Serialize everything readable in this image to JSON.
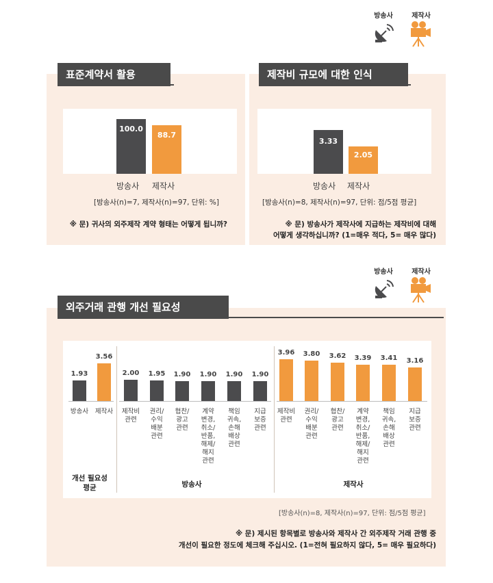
{
  "legend": {
    "broadcaster": "방송사",
    "producer": "제작사",
    "colors": {
      "broadcaster": "#4b4b4d",
      "producer": "#f19a3e"
    },
    "icons": {
      "broadcaster": "satellite-dish-icon",
      "producer": "movie-camera-icon"
    }
  },
  "section1": {
    "title": "표준계약서 활용",
    "categories": [
      "방송사",
      "제작사"
    ],
    "note": "[방송사(n)=7, 제작사(n)=97, 단위: %]",
    "question": "※ 문) 귀사의 외주제작 계약 형태는 어떻게 됩니까?"
  },
  "section2": {
    "title": "제작비 규모에 대한 인식",
    "categories": [
      "방송사",
      "제작사"
    ],
    "note": "[방송사(n)=8, 제작사(n)=97, 단위: 점/5점 평균]",
    "question_line1": "※ 문) 방송사가 제작사에 지급하는 제작비에 대해",
    "question_line2": "어떻게 생각하십니까? (1=매우 적다, 5= 매우 많다)"
  },
  "section3": {
    "title": "외주거래 관행 개선 필요성",
    "group_avg": "개선 필요성\n평균",
    "group_broadcaster": "방송사",
    "group_producer": "제작사",
    "note": "[방송사(n)=8, 제작사(n)=97, 단위: 점/5점 평균]",
    "question_line1": "※ 문) 제시된 항목별로 방송사와 제작사 간 외주제작 거래 관행 중",
    "question_line2": "개선이 필요한 정도에 체크해 주십시오. (1=전혀 필요하지 않다, 5= 매우 필요하다)"
  },
  "chart_data": [
    {
      "type": "bar",
      "title": "표준계약서 활용",
      "categories": [
        "방송사",
        "제작사"
      ],
      "values": [
        100.0,
        88.7
      ],
      "labels": [
        "100.0",
        "88.7"
      ],
      "ylim": [
        0,
        100
      ]
    },
    {
      "type": "bar",
      "title": "제작비 규모에 대한 인식",
      "categories": [
        "방송사",
        "제작사"
      ],
      "values": [
        3.33,
        2.05
      ],
      "labels": [
        "3.33",
        "2.05"
      ],
      "ylim": [
        0,
        5
      ]
    },
    {
      "type": "bar",
      "title": "외주거래 관행 개선 필요성",
      "ylim": [
        0,
        5
      ],
      "average": {
        "categories": [
          "방송사",
          "제작사"
        ],
        "values": [
          1.93,
          3.56
        ],
        "labels": [
          "1.93",
          "3.56"
        ]
      },
      "categories": [
        "제작비\n관련",
        "권리/\n수익\n배분\n관련",
        "협찬/\n광고\n관련",
        "계약\n변경,\n취소/\n반품,\n해제/\n해지\n관련",
        "책임\n귀속,\n손해\n배상\n관련",
        "지급\n보증\n관련"
      ],
      "series": [
        {
          "name": "방송사",
          "values": [
            2.0,
            1.95,
            1.9,
            1.9,
            1.9,
            1.9
          ],
          "labels": [
            "2.00",
            "1.95",
            "1.90",
            "1.90",
            "1.90",
            "1.90"
          ]
        },
        {
          "name": "제작사",
          "values": [
            3.96,
            3.8,
            3.62,
            3.39,
            3.41,
            3.16
          ],
          "labels": [
            "3.96",
            "3.80",
            "3.62",
            "3.39",
            "3.41",
            "3.16"
          ]
        }
      ]
    }
  ]
}
